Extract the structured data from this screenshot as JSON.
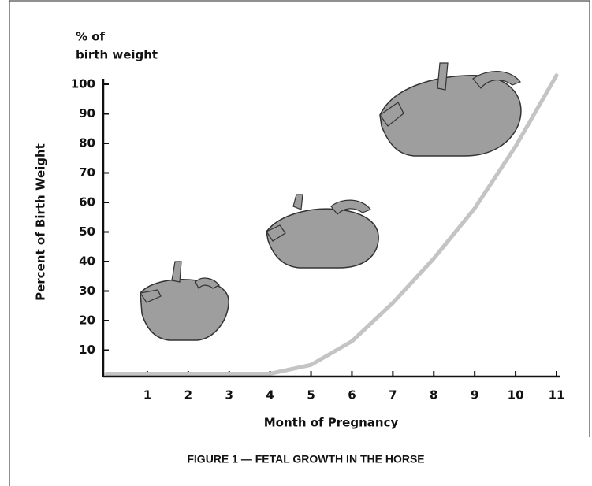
{
  "chart_data": {
    "type": "line",
    "unit_label": [
      "% of",
      "birth weight"
    ],
    "ylabel": "Percent of Birth Weight",
    "xlabel": "Month of Pregnancy",
    "caption": "FIGURE 1 — FETAL GROWTH IN THE HORSE",
    "x": [
      0,
      1,
      2,
      3,
      4,
      5,
      6,
      7,
      8,
      9,
      10,
      11
    ],
    "series": [
      {
        "color": "#c4c4c4",
        "values": [
          2,
          2,
          2,
          2,
          2,
          5,
          13,
          26,
          41,
          58,
          79,
          103
        ]
      }
    ],
    "xlim": [
      0,
      11
    ],
    "xticks": [
      1,
      2,
      3,
      4,
      5,
      6,
      7,
      8,
      9,
      10,
      11
    ],
    "ylim": [
      0,
      100
    ],
    "yticks": [
      10,
      20,
      30,
      40,
      50,
      60,
      70,
      80,
      90,
      100
    ]
  }
}
